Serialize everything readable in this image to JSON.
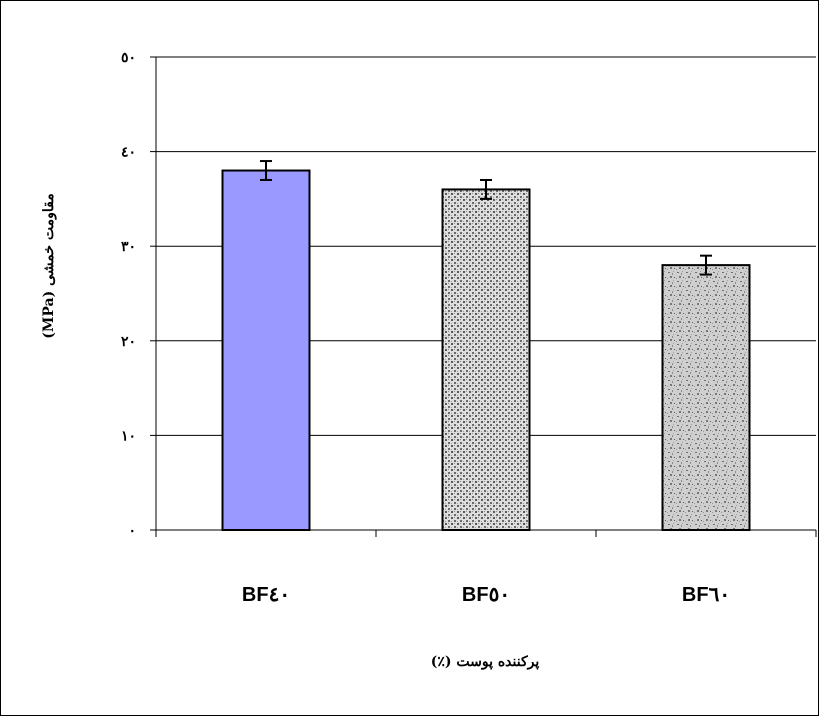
{
  "chart_data": {
    "type": "bar",
    "categories": [
      "BF٤٠",
      "BF٥٠",
      "BF٦٠"
    ],
    "values": [
      38,
      36,
      28
    ],
    "errors": [
      1,
      1,
      1
    ],
    "ylabel": "مقاومت خمشی (MPa)",
    "xlabel": "پرکننده پوست (٪)",
    "ylim": [
      0,
      50
    ],
    "yticks": [
      0,
      10,
      20,
      30,
      40,
      50
    ],
    "ytick_labels": [
      "٠",
      "١٠",
      "٢٠",
      "٣٠",
      "٤٠",
      "٥٠"
    ],
    "grid": true,
    "bar_fills": [
      "solid",
      "mesh-texture",
      "speckle-texture"
    ],
    "colors": {
      "bar1": "#9999ff",
      "gridline": "#000000",
      "bar_stroke": "#000000"
    }
  }
}
